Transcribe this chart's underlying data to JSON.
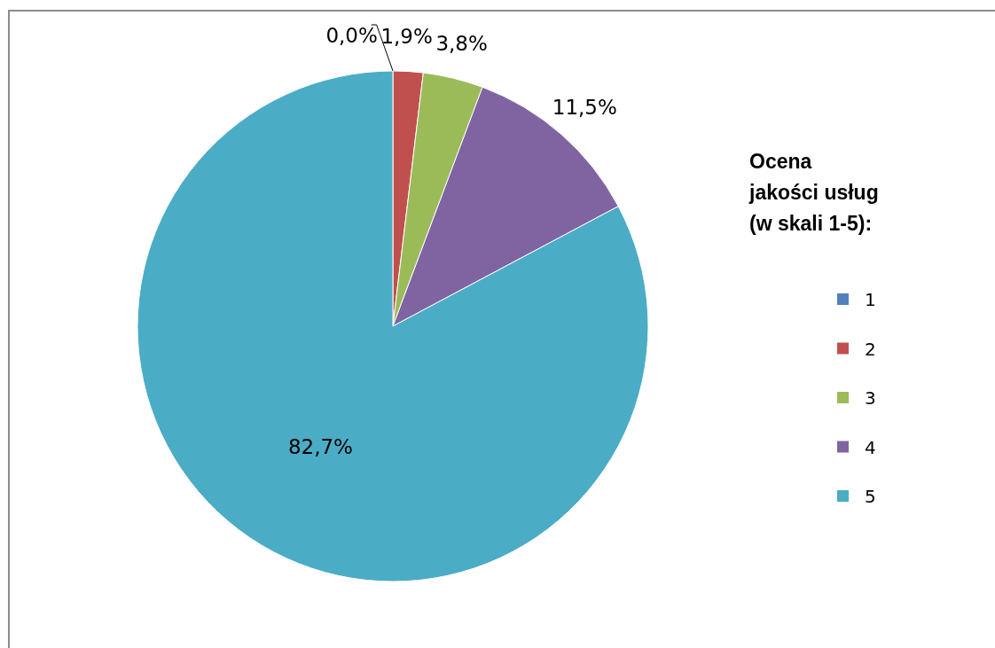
{
  "chart_data": {
    "type": "pie",
    "legend_title": "Ocena\njakości usług\n(w skali 1-5):",
    "categories": [
      "1",
      "2",
      "3",
      "4",
      "5"
    ],
    "values": [
      0.0,
      1.9,
      3.8,
      11.5,
      82.7
    ],
    "colors": [
      "#4f81bd",
      "#c0504d",
      "#9bbb59",
      "#8064a2",
      "#4bacc6"
    ],
    "value_labels": [
      "0,0%",
      "1,9%",
      "3,8%",
      "11,5%",
      "82,7%"
    ],
    "legend": "right"
  }
}
